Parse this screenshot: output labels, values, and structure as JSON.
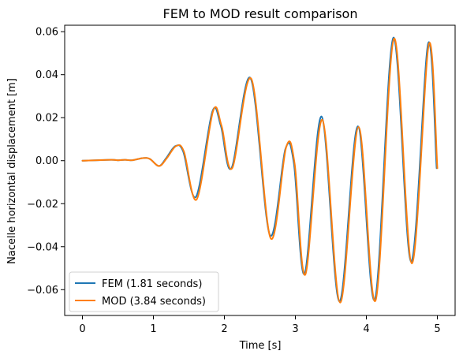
{
  "chart_data": {
    "type": "line",
    "title": "FEM to MOD result comparison",
    "xlabel": "Time [s]",
    "ylabel": "Nacelle horizontal displacement [m]",
    "xlim": [
      -0.25,
      5.25
    ],
    "ylim": [
      -0.072,
      0.063
    ],
    "xticks": [
      0,
      1,
      2,
      3,
      4,
      5
    ],
    "xtick_labels": [
      "0",
      "1",
      "2",
      "3",
      "4",
      "5"
    ],
    "yticks": [
      -0.06,
      -0.04,
      -0.02,
      0.0,
      0.02,
      0.04,
      0.06
    ],
    "ytick_labels": [
      "−0.06",
      "−0.04",
      "−0.02",
      "0.00",
      "0.02",
      "0.04",
      "0.06"
    ],
    "grid": false,
    "legend_position": "lower-left",
    "colors": {
      "fem": "#1f77b4",
      "mod": "#ff7f0e"
    },
    "series": [
      {
        "name": "FEM (1.81 seconds)",
        "color": "#1f77b4",
        "points": [
          [
            0.0,
            0.0
          ],
          [
            0.4,
            0.0004
          ],
          [
            0.5,
            0.0002
          ],
          [
            0.6,
            0.0004
          ],
          [
            0.7,
            0.0002
          ],
          [
            0.85,
            0.0012
          ],
          [
            0.95,
            0.0008
          ],
          [
            1.08,
            -0.0025
          ],
          [
            1.18,
            0.0012
          ],
          [
            1.31,
            0.0068
          ],
          [
            1.42,
            0.0042
          ],
          [
            1.6,
            -0.0168
          ],
          [
            1.83,
            0.0228
          ],
          [
            1.95,
            0.0162
          ],
          [
            2.1,
            -0.0035
          ],
          [
            2.37,
            0.0383
          ],
          [
            2.64,
            -0.0345
          ],
          [
            2.86,
            0.0055
          ],
          [
            2.98,
            -0.0015
          ],
          [
            3.13,
            -0.0526
          ],
          [
            3.37,
            0.0205
          ],
          [
            3.62,
            -0.0655
          ],
          [
            3.88,
            0.016
          ],
          [
            4.12,
            -0.0645
          ],
          [
            4.38,
            0.0572
          ],
          [
            4.63,
            -0.047
          ],
          [
            4.87,
            0.0545
          ],
          [
            4.99,
            -0.0035
          ]
        ]
      },
      {
        "name": "MOD (3.84 seconds)",
        "color": "#ff7f0e",
        "points": [
          [
            0.0,
            0.0
          ],
          [
            0.4,
            0.0004
          ],
          [
            0.5,
            0.0002
          ],
          [
            0.6,
            0.0004
          ],
          [
            0.7,
            0.0002
          ],
          [
            0.85,
            0.0012
          ],
          [
            0.95,
            0.0008
          ],
          [
            1.08,
            -0.0025
          ],
          [
            1.19,
            0.0012
          ],
          [
            1.32,
            0.0068
          ],
          [
            1.43,
            0.0042
          ],
          [
            1.61,
            -0.018
          ],
          [
            1.84,
            0.023
          ],
          [
            1.96,
            0.0162
          ],
          [
            2.11,
            -0.0035
          ],
          [
            2.38,
            0.038
          ],
          [
            2.65,
            -0.036
          ],
          [
            2.87,
            0.0063
          ],
          [
            2.99,
            -0.0015
          ],
          [
            3.14,
            -0.053
          ],
          [
            3.38,
            0.019
          ],
          [
            3.63,
            -0.066
          ],
          [
            3.89,
            0.0157
          ],
          [
            4.13,
            -0.065
          ],
          [
            4.39,
            0.0568
          ],
          [
            4.64,
            -0.0478
          ],
          [
            4.88,
            0.0542
          ],
          [
            5.0,
            -0.0035
          ]
        ]
      }
    ]
  }
}
